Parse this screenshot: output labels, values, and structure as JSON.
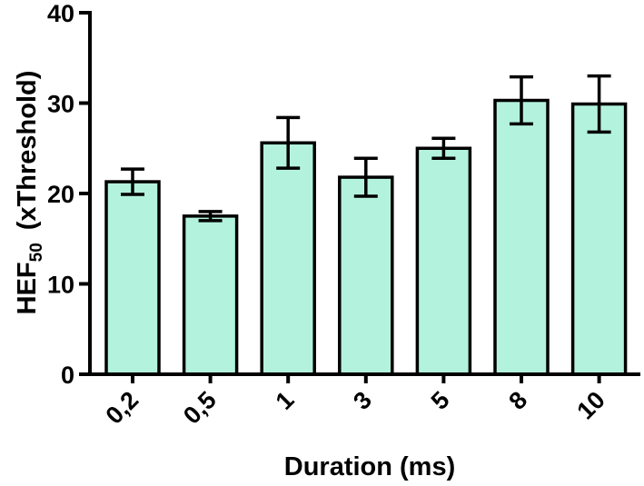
{
  "chart_data": {
    "type": "bar",
    "categories": [
      "0,2",
      "0,5",
      "1",
      "3",
      "5",
      "8",
      "10"
    ],
    "values": [
      21.3,
      17.5,
      25.6,
      21.8,
      25.0,
      30.3,
      29.9
    ],
    "error": [
      1.4,
      0.5,
      2.8,
      2.1,
      1.1,
      2.6,
      3.1
    ],
    "xlabel": "Duration (ms)",
    "ylabel": {
      "main": "HEF",
      "sub": "50",
      "rest": "(xThreshold)"
    },
    "ylim": [
      0,
      40
    ],
    "yticks": [
      0,
      10,
      20,
      30,
      40
    ],
    "grid": false,
    "colors": {
      "bar_fill": "#b3f3de",
      "stroke": "#000000"
    }
  }
}
